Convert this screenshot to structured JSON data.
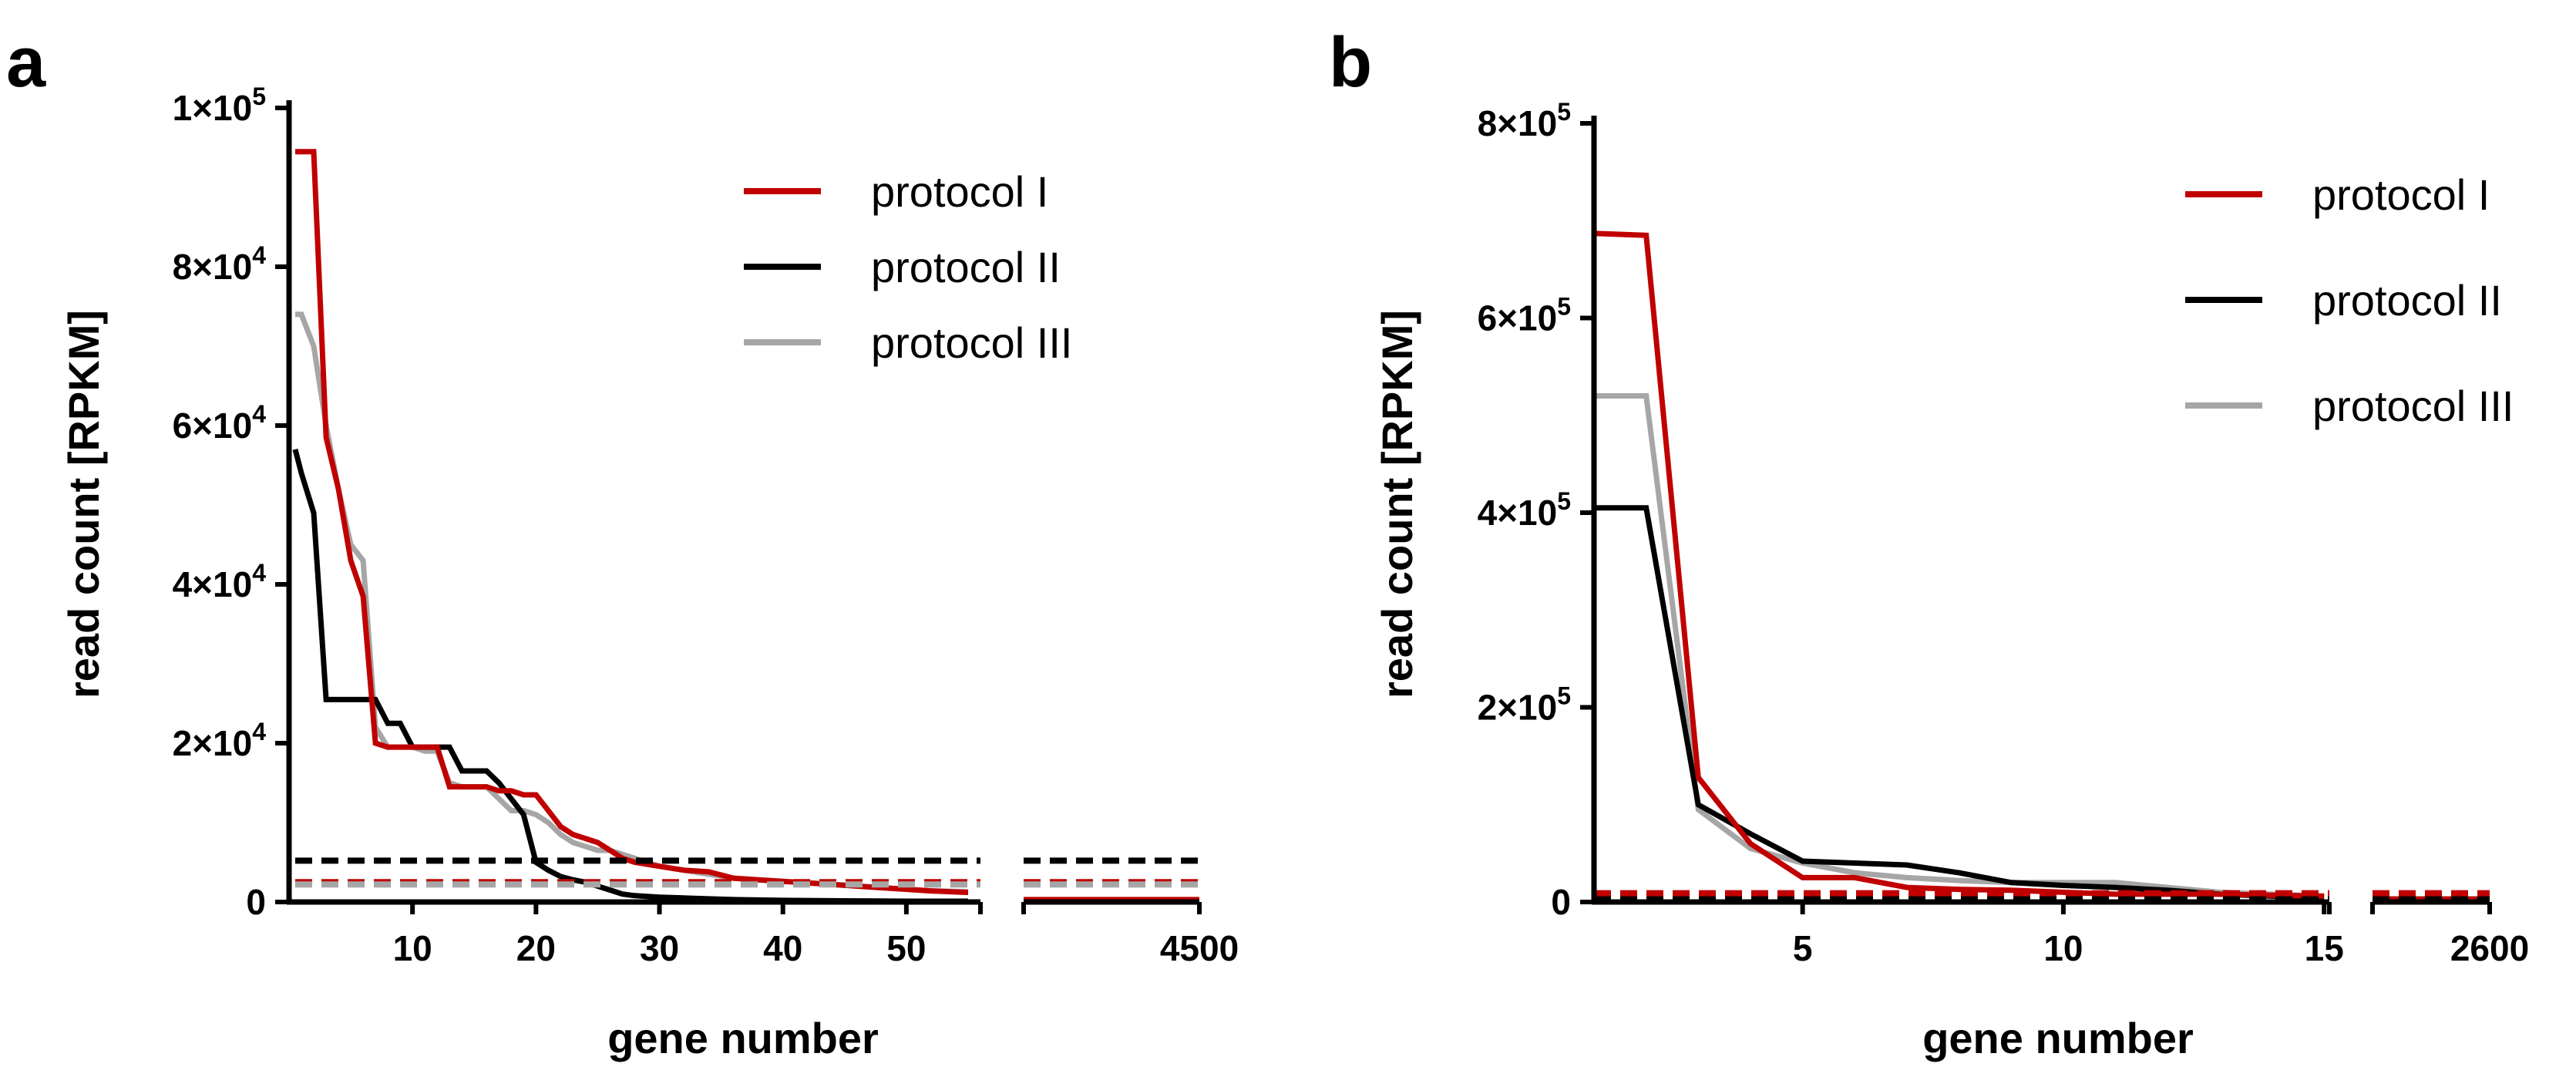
{
  "chart_data": [
    {
      "panel": "a",
      "type": "line",
      "title": "",
      "xlabel": "gene number",
      "ylabel": "read count [RPKM]",
      "ylim": [
        0,
        100000
      ],
      "xlim_main": [
        0,
        56
      ],
      "xlim_break": [
        4440,
        4500
      ],
      "y_tick_labels": [
        {
          "value": 20000,
          "mant": "2",
          "exp": "4"
        },
        {
          "value": 40000,
          "mant": "4",
          "exp": "4"
        },
        {
          "value": 60000,
          "mant": "6",
          "exp": "4"
        },
        {
          "value": 80000,
          "mant": "8",
          "exp": "4"
        },
        {
          "value": 100000,
          "mant": "1",
          "exp": "5"
        }
      ],
      "x_ticks_main": [
        10,
        20,
        30,
        40,
        50
      ],
      "x_tick_break": "4500",
      "legend": {
        "position": "top-right",
        "entries": [
          {
            "label": "protocol I",
            "color": "#c00000"
          },
          {
            "label": "protocol II",
            "color": "#000000"
          },
          {
            "label": "protocol III",
            "color": "#a6a6a6"
          }
        ]
      },
      "series": [
        {
          "name": "protocol III",
          "color": "#a6a6a6",
          "x": [
            0.5,
            1,
            2,
            3,
            4,
            5,
            6,
            7,
            8,
            9,
            10,
            11,
            12,
            13,
            14,
            15,
            16,
            17,
            18,
            19,
            20,
            21,
            22,
            23,
            24,
            25,
            26,
            27,
            28,
            30,
            32,
            34,
            36,
            38,
            40,
            42,
            44,
            46,
            48,
            50,
            52,
            55
          ],
          "y": [
            74000,
            74000,
            70000,
            60000,
            52000,
            45000,
            43000,
            22000,
            19500,
            19500,
            19500,
            19000,
            19000,
            15000,
            14500,
            14500,
            14500,
            13000,
            11500,
            11500,
            11000,
            10000,
            8500,
            7500,
            7000,
            6500,
            6500,
            6000,
            5500,
            4500,
            4000,
            3500,
            3000,
            2800,
            2600,
            2400,
            2200,
            2000,
            1800,
            1600,
            1400,
            1300
          ]
        },
        {
          "name": "protocol II",
          "color": "#000000",
          "x": [
            0.5,
            1,
            2,
            3,
            4,
            5,
            6,
            7,
            8,
            9,
            10,
            11,
            12,
            13,
            14,
            15,
            16,
            17,
            18,
            19,
            20,
            21,
            22,
            23,
            24,
            25,
            26,
            27,
            28,
            30,
            32,
            34,
            36,
            38,
            40,
            45,
            50,
            55
          ],
          "y": [
            57000,
            54000,
            49000,
            25500,
            25500,
            25500,
            25500,
            25500,
            22500,
            22500,
            19500,
            19500,
            19500,
            19500,
            16500,
            16500,
            16500,
            15000,
            13000,
            11000,
            5000,
            4000,
            3200,
            2800,
            2500,
            2000,
            1500,
            1000,
            800,
            600,
            500,
            400,
            300,
            250,
            200,
            150,
            100,
            100
          ]
        },
        {
          "name": "protocol I",
          "color": "#c00000",
          "x": [
            0.5,
            1,
            2,
            3,
            4,
            5,
            6,
            7,
            8,
            9,
            10,
            11,
            12,
            13,
            14,
            15,
            16,
            17,
            18,
            19,
            20,
            21,
            22,
            23,
            24,
            25,
            26,
            27,
            28,
            30,
            32,
            34,
            36,
            38,
            40,
            42,
            44,
            46,
            48,
            50,
            52,
            55
          ],
          "y": [
            94500,
            94500,
            94500,
            58500,
            52000,
            43000,
            38500,
            20000,
            19500,
            19500,
            19500,
            19500,
            19500,
            14500,
            14500,
            14500,
            14500,
            14000,
            14000,
            13500,
            13500,
            11500,
            9500,
            8500,
            8000,
            7500,
            6500,
            5500,
            5000,
            4500,
            4000,
            3800,
            3000,
            2800,
            2600,
            2400,
            2200,
            2000,
            1800,
            1600,
            1400,
            1200
          ]
        },
        {
          "name": "protocol II",
          "role": "threshold",
          "dashed": true,
          "color": "#000000",
          "x": [
            0.5,
            56
          ],
          "y": [
            5200,
            5200
          ]
        },
        {
          "name": "protocol I",
          "role": "threshold",
          "dashed": true,
          "color": "#c00000",
          "x": [
            0.5,
            56
          ],
          "y": [
            2500,
            2500
          ]
        },
        {
          "name": "protocol III",
          "role": "threshold",
          "dashed": true,
          "color": "#a6a6a6",
          "x": [
            0.5,
            56
          ],
          "y": [
            2200,
            2200
          ]
        }
      ],
      "break_series": [
        {
          "name": "protocol III",
          "color": "#a6a6a6",
          "x": [
            4440,
            4500
          ],
          "y": [
            200,
            200
          ]
        },
        {
          "name": "protocol II",
          "color": "#000000",
          "x": [
            4440,
            4500
          ],
          "y": [
            100,
            100
          ]
        },
        {
          "name": "protocol I",
          "color": "#c00000",
          "x": [
            4440,
            4500
          ],
          "y": [
            300,
            300
          ]
        },
        {
          "name": "protocol II",
          "role": "threshold",
          "dashed": true,
          "color": "#000000",
          "x": [
            4440,
            4500
          ],
          "y": [
            5200,
            5200
          ]
        },
        {
          "name": "protocol I",
          "role": "threshold",
          "dashed": true,
          "color": "#c00000",
          "x": [
            4440,
            4500
          ],
          "y": [
            2500,
            2500
          ]
        },
        {
          "name": "protocol III",
          "role": "threshold",
          "dashed": true,
          "color": "#a6a6a6",
          "x": [
            4440,
            4500
          ],
          "y": [
            2200,
            2200
          ]
        }
      ]
    },
    {
      "panel": "b",
      "type": "line",
      "title": "",
      "xlabel": "gene number",
      "ylabel": "read count [RPKM]",
      "ylim": [
        0,
        800000
      ],
      "xlim_main": [
        1,
        15.1
      ],
      "xlim_break": [
        2540,
        2600
      ],
      "y_tick_labels": [
        {
          "value": 200000,
          "mant": "2",
          "exp": "5"
        },
        {
          "value": 400000,
          "mant": "4",
          "exp": "5"
        },
        {
          "value": 600000,
          "mant": "6",
          "exp": "5"
        },
        {
          "value": 800000,
          "mant": "8",
          "exp": "5"
        }
      ],
      "x_ticks_main": [
        5,
        10,
        15
      ],
      "x_tick_break": "2600",
      "legend": {
        "position": "top-right",
        "entries": [
          {
            "label": "protocol I",
            "color": "#c00000"
          },
          {
            "label": "protocol II",
            "color": "#000000"
          },
          {
            "label": "protocol III",
            "color": "#a6a6a6"
          }
        ]
      },
      "series": [
        {
          "name": "protocol III",
          "color": "#a6a6a6",
          "x": [
            1,
            2,
            3,
            4,
            5,
            6,
            7,
            8,
            9,
            10,
            11,
            12,
            13,
            14,
            15
          ],
          "y": [
            520000,
            520000,
            95000,
            55000,
            40000,
            30000,
            25000,
            22000,
            20000,
            20000,
            20000,
            15000,
            10000,
            8000,
            6000
          ]
        },
        {
          "name": "protocol II",
          "color": "#000000",
          "x": [
            1,
            2,
            3,
            4,
            5,
            6,
            7,
            8,
            9,
            10,
            11,
            12,
            13,
            14,
            15
          ],
          "y": [
            405000,
            405000,
            100000,
            70000,
            42000,
            40000,
            38000,
            30000,
            20000,
            17000,
            15000,
            12000,
            8000,
            6000,
            5000
          ]
        },
        {
          "name": "protocol I",
          "color": "#c00000",
          "x": [
            1,
            2,
            3,
            4,
            5,
            6,
            7,
            8,
            9,
            10,
            11,
            12,
            13,
            14,
            15
          ],
          "y": [
            687000,
            685000,
            128000,
            60000,
            25000,
            25000,
            15000,
            13000,
            12000,
            10000,
            8000,
            8000,
            8000,
            7000,
            6000
          ]
        },
        {
          "name": "protocol II",
          "role": "threshold",
          "dashed": true,
          "color": "#000000",
          "x": [
            1,
            15.1
          ],
          "y": [
            5000,
            5000
          ]
        },
        {
          "name": "protocol I",
          "role": "threshold",
          "dashed": true,
          "color": "#c00000",
          "x": [
            1,
            15.1
          ],
          "y": [
            9000,
            9000
          ]
        }
      ],
      "break_series": [
        {
          "name": "protocol III",
          "color": "#a6a6a6",
          "x": [
            2540,
            2600
          ],
          "y": [
            3000,
            3000
          ]
        },
        {
          "name": "protocol II",
          "color": "#000000",
          "x": [
            2540,
            2600
          ],
          "y": [
            3000,
            3000
          ]
        },
        {
          "name": "protocol I",
          "color": "#c00000",
          "x": [
            2540,
            2600
          ],
          "y": [
            3000,
            3000
          ]
        },
        {
          "name": "protocol II",
          "role": "threshold",
          "dashed": true,
          "color": "#000000",
          "x": [
            2540,
            2600
          ],
          "y": [
            5000,
            5000
          ]
        },
        {
          "name": "protocol I",
          "role": "threshold",
          "dashed": true,
          "color": "#c00000",
          "x": [
            2540,
            2600
          ],
          "y": [
            9000,
            9000
          ]
        }
      ]
    }
  ]
}
